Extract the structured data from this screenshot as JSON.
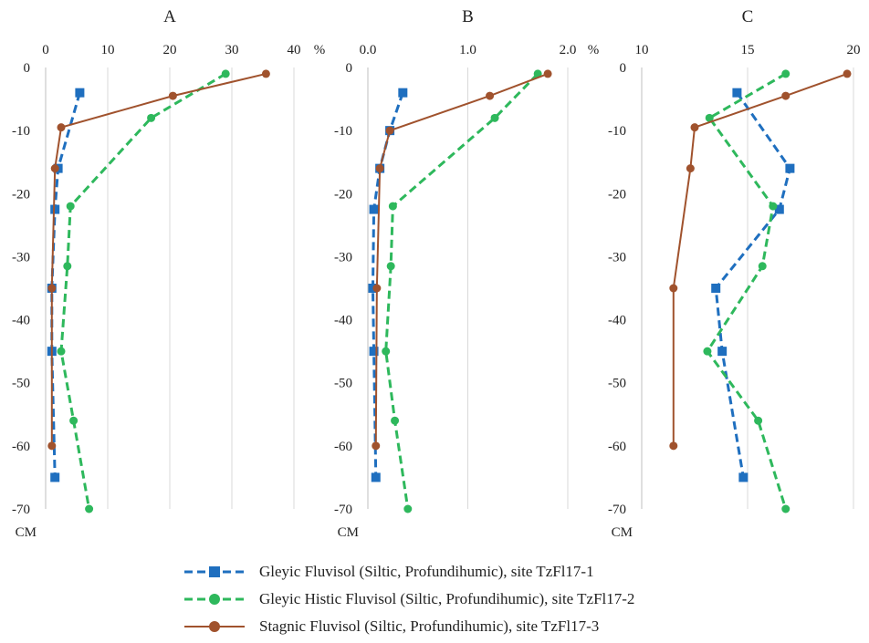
{
  "chart_data": [
    {
      "type": "line",
      "title": "A",
      "x_unit": "%",
      "y_unit": "CM",
      "xlim": [
        0,
        40
      ],
      "ylim": [
        -70,
        0
      ],
      "x_ticks": [
        "0",
        "10",
        "20",
        "30",
        "40"
      ],
      "y_ticks": [
        "0",
        "-10",
        "-20",
        "-30",
        "-40",
        "-50",
        "-60",
        "-70"
      ],
      "grid": "vertical",
      "series": [
        {
          "name": "Gleyic Fluvisol (Siltic, Profundihumic), site TzFl17-1",
          "color": "#1f6fbf",
          "dash": "dashed",
          "marker": "square",
          "points": [
            [
              5.5,
              -4
            ],
            [
              2,
              -16
            ],
            [
              1.5,
              -22.5
            ],
            [
              1,
              -35
            ],
            [
              1,
              -45
            ],
            [
              1.5,
              -65
            ]
          ]
        },
        {
          "name": "Gleyic Histic Fluvisol (Siltic, Profundihumic), site TzFl17-2",
          "color": "#2eb85c",
          "dash": "dashed",
          "marker": "circle",
          "points": [
            [
              29,
              -1
            ],
            [
              17,
              -8
            ],
            [
              4,
              -22
            ],
            [
              3.5,
              -31.5
            ],
            [
              2.5,
              -45
            ],
            [
              4.5,
              -56
            ],
            [
              7,
              -70
            ]
          ]
        },
        {
          "name": "Stagnic Fluvisol (Siltic, Profundihumic), site TzFl17-3",
          "color": "#a0522d",
          "dash": "solid",
          "marker": "circle",
          "points": [
            [
              35.5,
              -1
            ],
            [
              20.5,
              -4.5
            ],
            [
              2.5,
              -9.5
            ],
            [
              1.5,
              -16
            ],
            [
              1,
              -35
            ],
            [
              1,
              -60
            ]
          ]
        }
      ]
    },
    {
      "type": "line",
      "title": "B",
      "x_unit": "%",
      "y_unit": "CM",
      "xlim": [
        0,
        2
      ],
      "ylim": [
        -70,
        0
      ],
      "x_ticks": [
        "0.0",
        "1.0",
        "2.0"
      ],
      "x_tick_values": [
        0,
        1,
        2
      ],
      "y_ticks": [
        "0",
        "-10",
        "-20",
        "-30",
        "-40",
        "-50",
        "-60",
        "-70"
      ],
      "grid": "vertical",
      "series": [
        {
          "name": "Gleyic Fluvisol (Siltic, Profundihumic), site TzFl17-1",
          "color": "#1f6fbf",
          "dash": "dashed",
          "marker": "square",
          "points": [
            [
              0.35,
              -4
            ],
            [
              0.22,
              -10
            ],
            [
              0.12,
              -16
            ],
            [
              0.06,
              -22.5
            ],
            [
              0.05,
              -35
            ],
            [
              0.06,
              -45
            ],
            [
              0.08,
              -65
            ]
          ]
        },
        {
          "name": "Gleyic Histic Fluvisol (Siltic, Profundihumic), site TzFl17-2",
          "color": "#2eb85c",
          "dash": "dashed",
          "marker": "circle",
          "points": [
            [
              1.7,
              -1
            ],
            [
              1.27,
              -8
            ],
            [
              0.25,
              -22
            ],
            [
              0.23,
              -31.5
            ],
            [
              0.18,
              -45
            ],
            [
              0.27,
              -56
            ],
            [
              0.4,
              -70
            ]
          ]
        },
        {
          "name": "Stagnic Fluvisol (Siltic, Profundihumic), site TzFl17-3",
          "color": "#a0522d",
          "dash": "solid",
          "marker": "circle",
          "points": [
            [
              1.8,
              -1
            ],
            [
              1.22,
              -4.5
            ],
            [
              0.22,
              -10
            ],
            [
              0.12,
              -16
            ],
            [
              0.09,
              -35
            ],
            [
              0.08,
              -60
            ]
          ]
        }
      ]
    },
    {
      "type": "line",
      "title": "C",
      "x_unit": "%",
      "y_unit": "CM",
      "xlim": [
        10,
        20
      ],
      "ylim": [
        -70,
        0
      ],
      "x_ticks": [
        "10",
        "15",
        "20"
      ],
      "x_tick_values": [
        10,
        15,
        20
      ],
      "y_ticks": [
        "0",
        "-10",
        "-20",
        "-30",
        "-40",
        "-50",
        "-60",
        "-70"
      ],
      "grid": "vertical",
      "series": [
        {
          "name": "Gleyic Fluvisol (Siltic, Profundihumic), site TzFl17-1",
          "color": "#1f6fbf",
          "dash": "dashed",
          "marker": "square",
          "points": [
            [
              14.5,
              -4
            ],
            [
              17,
              -16
            ],
            [
              16.5,
              -22.5
            ],
            [
              13.5,
              -35
            ],
            [
              13.8,
              -45
            ],
            [
              14.8,
              -65
            ]
          ]
        },
        {
          "name": "Gleyic Histic Fluvisol (Siltic, Profundihumic), site TzFl17-2",
          "color": "#2eb85c",
          "dash": "dashed",
          "marker": "circle",
          "points": [
            [
              16.8,
              -1
            ],
            [
              13.2,
              -8
            ],
            [
              16.2,
              -22
            ],
            [
              15.7,
              -31.5
            ],
            [
              13.1,
              -45
            ],
            [
              15.5,
              -56
            ],
            [
              16.8,
              -70
            ]
          ]
        },
        {
          "name": "Stagnic Fluvisol (Siltic, Profundihumic), site TzFl17-3",
          "color": "#a0522d",
          "dash": "solid",
          "marker": "circle",
          "points": [
            [
              19.7,
              -1
            ],
            [
              16.8,
              -4.5
            ],
            [
              12.5,
              -9.5
            ],
            [
              12.3,
              -16
            ],
            [
              11.5,
              -35
            ],
            [
              11.5,
              -60
            ]
          ]
        }
      ]
    }
  ],
  "legend": {
    "entries": [
      {
        "label": "Gleyic Fluvisol (Siltic, Profundihumic), site TzFl17-1",
        "color": "#1f6fbf",
        "dash": "dashed",
        "marker": "square"
      },
      {
        "label": "Gleyic Histic Fluvisol (Siltic, Profundihumic), site TzFl17-2",
        "color": "#2eb85c",
        "dash": "dashed",
        "marker": "circle"
      },
      {
        "label": "Stagnic Fluvisol (Siltic, Profundihumic), site TzFl17-3",
        "color": "#a0522d",
        "dash": "solid",
        "marker": "circle"
      }
    ]
  }
}
